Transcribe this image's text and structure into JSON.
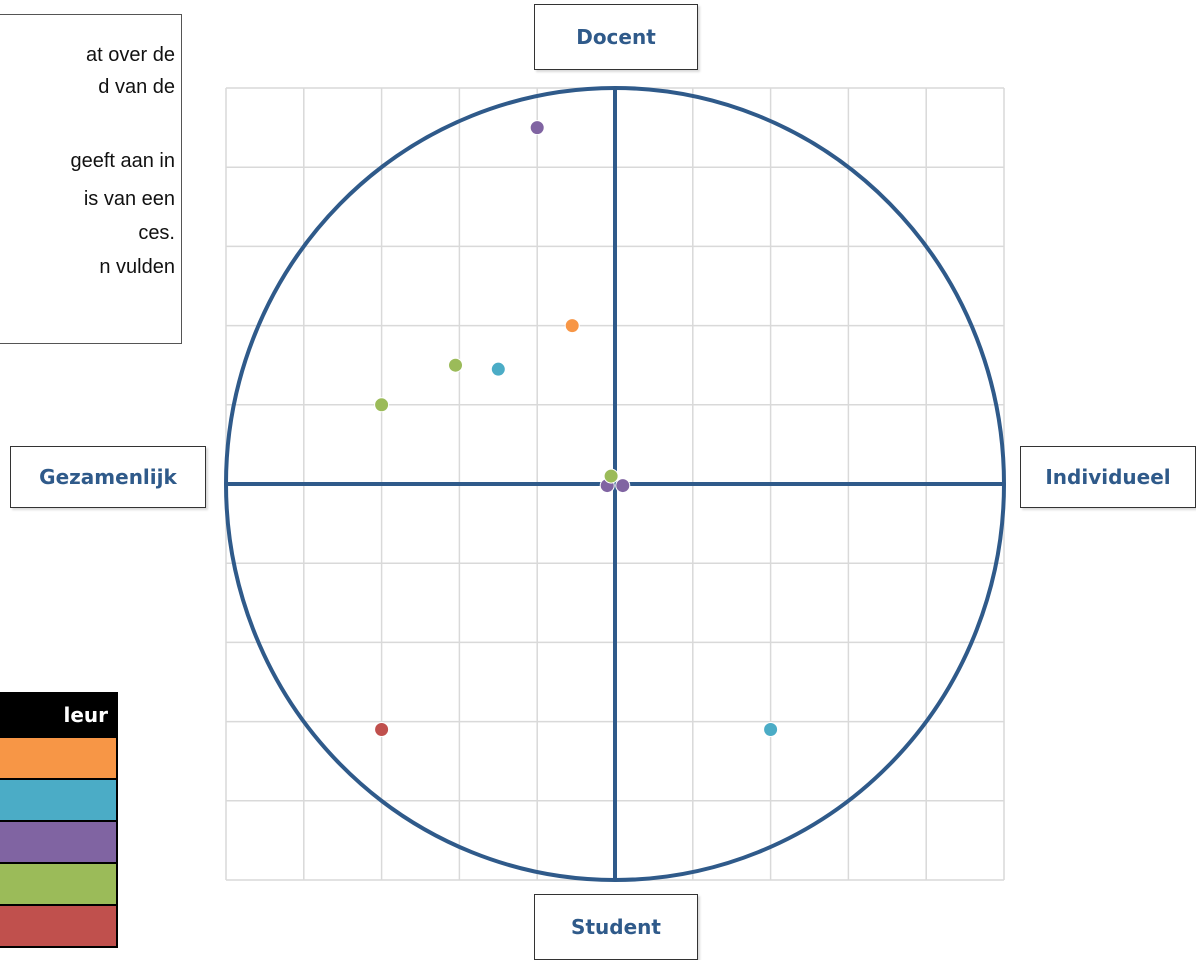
{
  "textbox": {
    "lines": [
      "at over de",
      "d van de",
      "",
      "geeft aan in",
      "is van een",
      "ces.",
      "n vulden"
    ]
  },
  "axis_labels": {
    "top": "Docent",
    "bottom": "Student",
    "left": "Gezamenlijk",
    "right": "Individueel"
  },
  "legend": {
    "header": "leur",
    "colors": [
      "#f79646",
      "#4bacc6",
      "#8064a2",
      "#9bbb59",
      "#c0504d"
    ]
  },
  "chart_data": {
    "type": "scatter",
    "title": "",
    "xlabel": "",
    "ylabel": "",
    "xlim": [
      -5,
      5
    ],
    "ylim": [
      -5,
      5
    ],
    "grid": true,
    "axis_color": "#2f5a8a",
    "series": [
      {
        "color": "#f79646",
        "points": [
          {
            "x": -0.55,
            "y": 2.0
          }
        ]
      },
      {
        "color": "#4bacc6",
        "points": [
          {
            "x": -1.5,
            "y": 1.45
          },
          {
            "x": 2.0,
            "y": -3.1
          }
        ]
      },
      {
        "color": "#8064a2",
        "points": [
          {
            "x": -1.0,
            "y": 4.5
          },
          {
            "x": 0.1,
            "y": -0.02
          },
          {
            "x": -0.1,
            "y": -0.02
          }
        ]
      },
      {
        "color": "#9bbb59",
        "points": [
          {
            "x": -2.05,
            "y": 1.5
          },
          {
            "x": -3.0,
            "y": 1.0
          },
          {
            "x": -0.05,
            "y": 0.1
          }
        ]
      },
      {
        "color": "#c0504d",
        "points": [
          {
            "x": -3.0,
            "y": -3.1
          }
        ]
      }
    ]
  }
}
